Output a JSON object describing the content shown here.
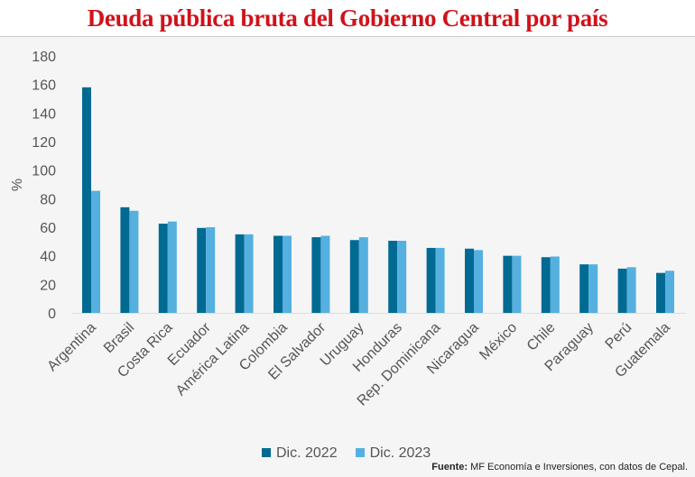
{
  "title": "Deuda pública bruta del Gobierno Central por país",
  "source": {
    "label": "Fuente:",
    "text": "MF Economía e Inversiones, con datos de Cepal."
  },
  "chart_data": {
    "type": "bar",
    "title": "Deuda pública bruta del Gobierno Central por país",
    "ylabel": "%",
    "xlabel": "",
    "ylim": [
      0,
      180
    ],
    "yticks": [
      0,
      20,
      40,
      60,
      80,
      100,
      120,
      140,
      160,
      180
    ],
    "grid": false,
    "legend_position": "bottom",
    "categories": [
      "Argentina",
      "Brasil",
      "Costa Rica",
      "Ecuador",
      "América Latina",
      "Colombia",
      "El Salvador",
      "Uruguay",
      "Honduras",
      "Rep. Dominicana",
      "Nicaragua",
      "México",
      "Chile",
      "Paraguay",
      "Perú",
      "Guatemala"
    ],
    "series": [
      {
        "name": "Dic. 2022",
        "color": "#006a93",
        "values": [
          158,
          74,
          62.5,
          59.5,
          55,
          54,
          53,
          51,
          50.5,
          45.5,
          45,
          40,
          39,
          34,
          31,
          28
        ]
      },
      {
        "name": "Dic. 2023",
        "color": "#55b0e0",
        "values": [
          85.5,
          71.5,
          64,
          60,
          55,
          54,
          54,
          53,
          50.5,
          45.5,
          44,
          40,
          39.5,
          34,
          32,
          29.5
        ]
      }
    ]
  }
}
